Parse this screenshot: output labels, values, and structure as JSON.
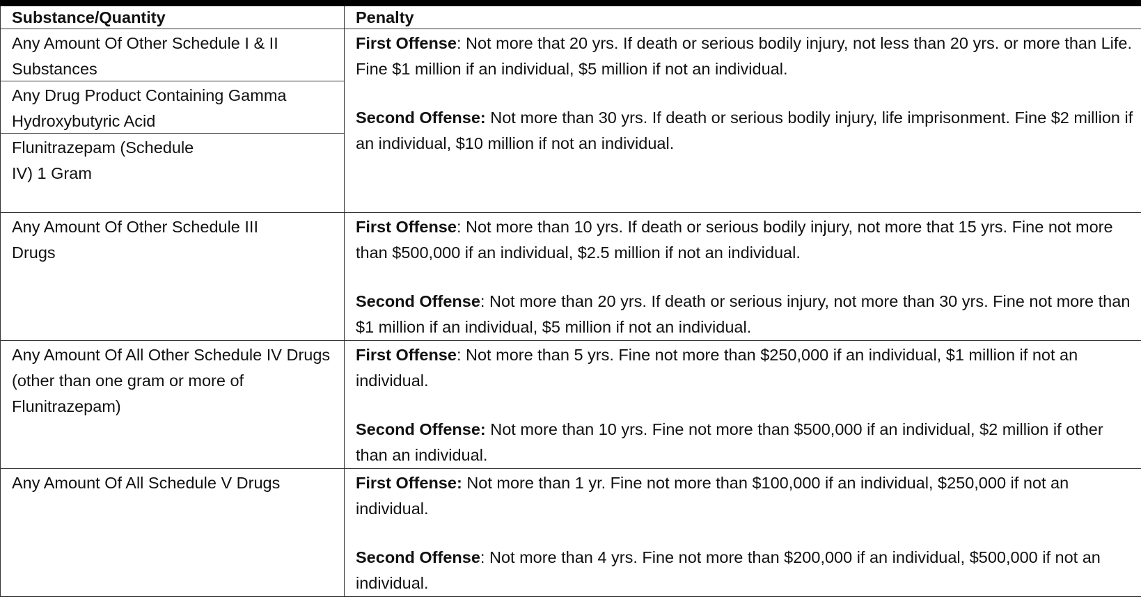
{
  "table": {
    "headers": {
      "substance": "Substance/Quantity",
      "penalty": "Penalty"
    },
    "rows": [
      {
        "substances": [
          "Any Amount Of Other Schedule I & II Substances",
          "Any Drug Product Containing Gamma Hydroxybutyric Acid",
          "Flunitrazepam (Schedule IV) 1 Gram"
        ],
        "first_label": "First Offense",
        "first_sep": ": ",
        "first_text": "Not more that 20 yrs.  If death or serious bodily injury, not less than 20 yrs. or more than Life.  Fine $1 million if an individual, $5 million if not an individual.",
        "second_label": "Second Offense:",
        "second_sep": " ",
        "second_text": "Not more than 30 yrs.  If death or serious bodily injury, life imprisonment.  Fine $2 million if an individual, $10 million if not an individual."
      },
      {
        "substance": "Any Amount Of Other Schedule III Drugs",
        "first_label": "First Offense",
        "first_sep": ": ",
        "first_text": "Not more than 10 yrs.  If death or serious bodily injury, not more that 15 yrs.  Fine not more than $500,000 if an individual, $2.5 million if not an individual.",
        "second_label": "Second Offense",
        "second_sep": ": ",
        "second_text": "Not more than 20 yrs.  If death or serious injury, not more than 30 yrs.  Fine not more than $1 million if an individual, $5 million if not an individual."
      },
      {
        "substance": "Any Amount Of All Other Schedule IV Drugs (other than one gram or more of Flunitrazepam)",
        "first_label": "First Offense",
        "first_sep": ": ",
        "first_text": "Not more than 5 yrs.  Fine not more than $250,000 if an individual, $1 million if not an individual.",
        "second_label": "Second Offense:",
        "second_sep": " ",
        "second_text": "Not more than 10 yrs.  Fine not more than $500,000 if an individual, $2 million if other than an individual."
      },
      {
        "substance": "Any Amount Of All Schedule V Drugs",
        "first_label": "First Offense:",
        "first_sep": " ",
        "first_text": "Not more than 1 yr.  Fine not more than $100,000 if an individual, $250,000 if not an individual.",
        "second_label": "Second Offense",
        "second_sep": ": ",
        "second_text": "Not more than 4 yrs.  Fine not more than $200,000 if an individual, $500,000 if not an individual."
      }
    ]
  }
}
